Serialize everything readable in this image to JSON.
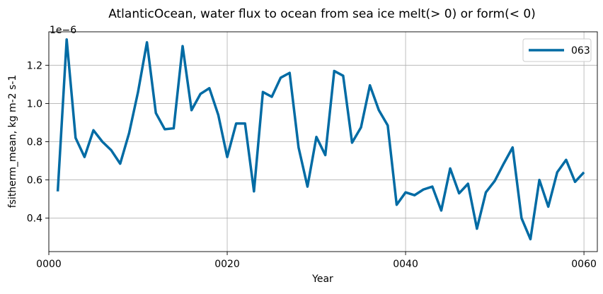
{
  "chart_data": {
    "type": "line",
    "title": "AtlanticOcean, water flux to ocean from sea ice melt(> 0) or form(< 0)",
    "xlabel": "Year",
    "ylabel": "fsitherm_mean, kg m-2 s-1",
    "y_multiplier_label": "1e−6",
    "xlim": [
      0,
      61.5
    ],
    "ylim": [
      0.225,
      1.375
    ],
    "x_ticks": [
      {
        "value": 0,
        "label": "0000"
      },
      {
        "value": 20,
        "label": "0020"
      },
      {
        "value": 40,
        "label": "0040"
      },
      {
        "value": 60,
        "label": "0060"
      }
    ],
    "y_ticks": [
      {
        "value": 0.4,
        "label": "0.4"
      },
      {
        "value": 0.6,
        "label": "0.6"
      },
      {
        "value": 0.8,
        "label": "0.8"
      },
      {
        "value": 1.0,
        "label": "1.0"
      },
      {
        "value": 1.2,
        "label": "1.2"
      }
    ],
    "grid": true,
    "legend_position": "top-right",
    "series": [
      {
        "name": "063",
        "color": "#006BA4",
        "x": [
          1,
          2,
          3,
          4,
          5,
          6,
          7,
          8,
          9,
          10,
          11,
          12,
          13,
          14,
          15,
          16,
          17,
          18,
          19,
          20,
          21,
          22,
          23,
          24,
          25,
          26,
          27,
          28,
          29,
          30,
          31,
          32,
          33,
          34,
          35,
          36,
          37,
          38,
          39,
          40,
          41,
          42,
          43,
          44,
          45,
          46,
          47,
          48,
          49,
          50,
          51,
          52,
          53,
          54,
          55,
          56,
          57,
          58,
          59,
          60
        ],
        "y": [
          0.54,
          1.335,
          0.82,
          0.72,
          0.86,
          0.8,
          0.755,
          0.685,
          0.845,
          1.06,
          1.32,
          0.95,
          0.865,
          0.87,
          1.3,
          0.965,
          1.05,
          1.08,
          0.94,
          0.72,
          0.895,
          0.895,
          0.54,
          1.06,
          1.035,
          1.135,
          1.16,
          0.77,
          0.565,
          0.825,
          0.73,
          1.17,
          1.145,
          0.795,
          0.875,
          1.095,
          0.965,
          0.885,
          0.47,
          0.535,
          0.52,
          0.55,
          0.565,
          0.44,
          0.66,
          0.53,
          0.58,
          0.345,
          0.535,
          0.595,
          0.685,
          0.77,
          0.4,
          0.29,
          0.6,
          0.46,
          0.64,
          0.705,
          0.59,
          0.64
        ]
      }
    ]
  }
}
